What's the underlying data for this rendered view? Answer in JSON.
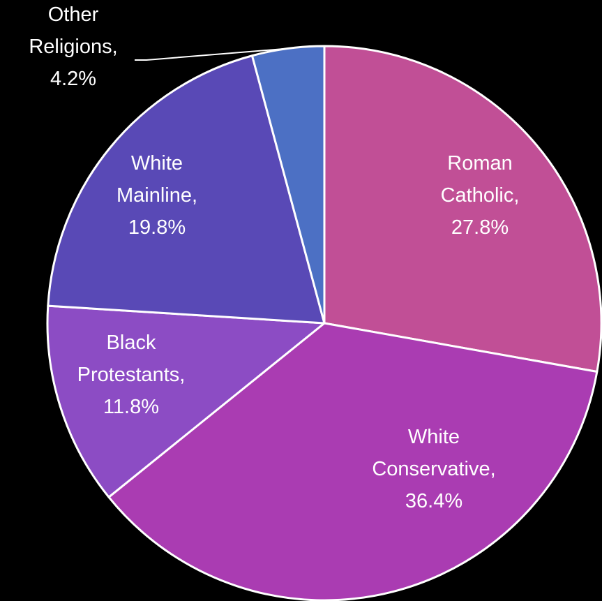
{
  "chart_data": {
    "type": "pie",
    "start_angle_deg": 0,
    "direction": "clockwise",
    "slices": [
      {
        "name": "Roman Catholic",
        "value": 27.8,
        "lines": [
          "Roman",
          "Catholic,",
          "27.8%"
        ],
        "color": "#c14f96",
        "label_color": "#ffffff"
      },
      {
        "name": "White Conservative",
        "value": 36.4,
        "lines": [
          "White",
          "Conservative,",
          "36.4%"
        ],
        "color": "#aa3cb2",
        "label_color": "#ffffff"
      },
      {
        "name": "Black Protestants",
        "value": 11.8,
        "lines": [
          "Black",
          "Protestants,",
          "11.8%"
        ],
        "color": "#8c4cc4",
        "label_color": "#ffffff"
      },
      {
        "name": "White Mainline",
        "value": 19.8,
        "lines": [
          "White",
          "Mainline,",
          "19.8%"
        ],
        "color": "#5949b6",
        "label_color": "#ffffff"
      },
      {
        "name": "Other Religions",
        "value": 4.2,
        "lines": [
          "Other",
          "Religions,",
          "4.2%"
        ],
        "color": "#4c70c4",
        "label_color": "#ffffff"
      }
    ],
    "slice_border_color": "#ffffff",
    "background": "#000000"
  }
}
